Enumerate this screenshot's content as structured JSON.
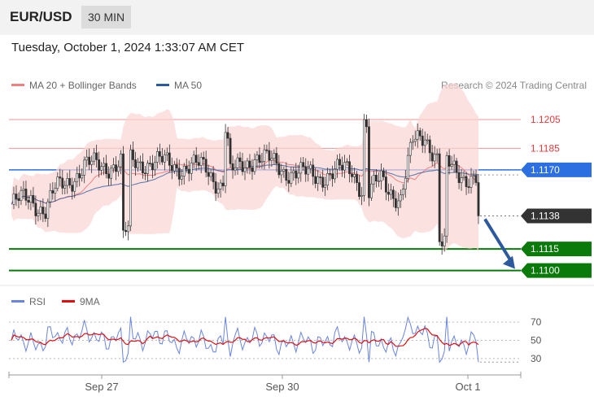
{
  "header": {
    "pair": "EUR/USD",
    "timeframe": "30 MIN"
  },
  "timestamp": "Tuesday, October 1, 2024 1:33:07 AM CET",
  "legend": {
    "ma20_label": "MA 20 + Bollinger Bands",
    "ma20_color": "#f08080",
    "ma50_label": "MA 50",
    "ma50_color": "#2d5a9e"
  },
  "credit": "Research © 2024 Trading Central",
  "rsi_legend": {
    "rsi_label": "RSI",
    "rsi_color": "#6a85e0",
    "ma_label": "9MA",
    "ma_color": "#e01010"
  },
  "chart_data": {
    "type": "candlestick",
    "price_range": [
      1.1093,
      1.1218
    ],
    "levels": [
      {
        "value": 1.1205,
        "label": "1.1205",
        "kind": "resistance",
        "style": "text",
        "color": "#e33b3b"
      },
      {
        "value": 1.1185,
        "label": "1.1185",
        "kind": "resistance",
        "style": "text",
        "color": "#e33b3b"
      },
      {
        "value": 1.117,
        "label": "1.1170",
        "kind": "pivot",
        "style": "box",
        "color": "#2b6fe0"
      },
      {
        "value": 1.1138,
        "label": "1.1138",
        "kind": "last_price",
        "style": "box",
        "color": "#333333"
      },
      {
        "value": 1.1115,
        "label": "1.1115",
        "kind": "support",
        "style": "box",
        "color": "#0a7a0a"
      },
      {
        "value": 1.11,
        "label": "1.1100",
        "kind": "support",
        "style": "box",
        "color": "#0a7a0a"
      }
    ],
    "x_ticks": [
      "Sep 27",
      "Sep 30",
      "Oct 1"
    ],
    "arrow": {
      "from": 1.1138,
      "to": 1.11,
      "direction": "down"
    },
    "rsi": {
      "ylim": [
        20,
        80
      ],
      "ticks": [
        30,
        50,
        70
      ]
    }
  }
}
